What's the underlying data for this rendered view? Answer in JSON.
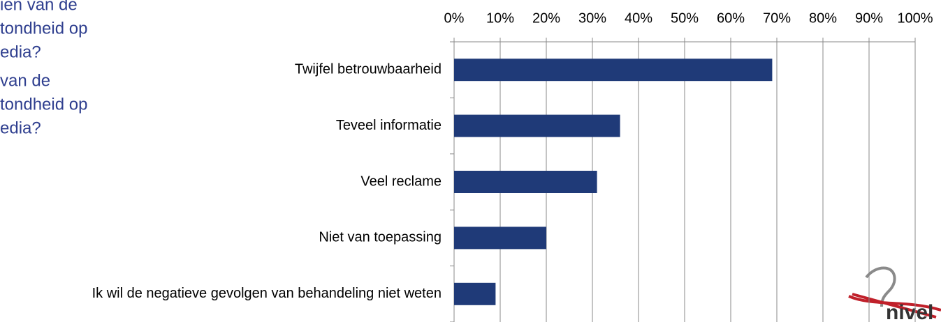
{
  "chart_data": {
    "type": "hbar",
    "annotations": [
      "ien van de",
      "tondheid op",
      "edia?",
      "van de",
      "tondheid op",
      "edia?",
      "nivel"
    ],
    "categories": [
      "Twijfel betrouwbaarheid",
      "Teveel informatie",
      "Veel reclame",
      "Niet van toepassing",
      "Ik wil de negatieve gevolgen van behandeling niet weten"
    ],
    "values": [
      69,
      36,
      31,
      20,
      9
    ],
    "color": "#1f3a78",
    "xlim": [
      0,
      100
    ],
    "xticks": [
      {
        "value": 0,
        "label": "0%"
      },
      {
        "value": 10,
        "label": "10%"
      },
      {
        "value": 20,
        "label": "20%"
      },
      {
        "value": 30,
        "label": "30%"
      },
      {
        "value": 40,
        "label": "40%"
      },
      {
        "value": 50,
        "label": "50%"
      },
      {
        "value": 60,
        "label": "60%"
      },
      {
        "value": 70,
        "label": "70%"
      },
      {
        "value": 80,
        "label": "80%"
      },
      {
        "value": 90,
        "label": "90%"
      },
      {
        "value": 100,
        "label": "100%"
      }
    ],
    "grid": true
  }
}
